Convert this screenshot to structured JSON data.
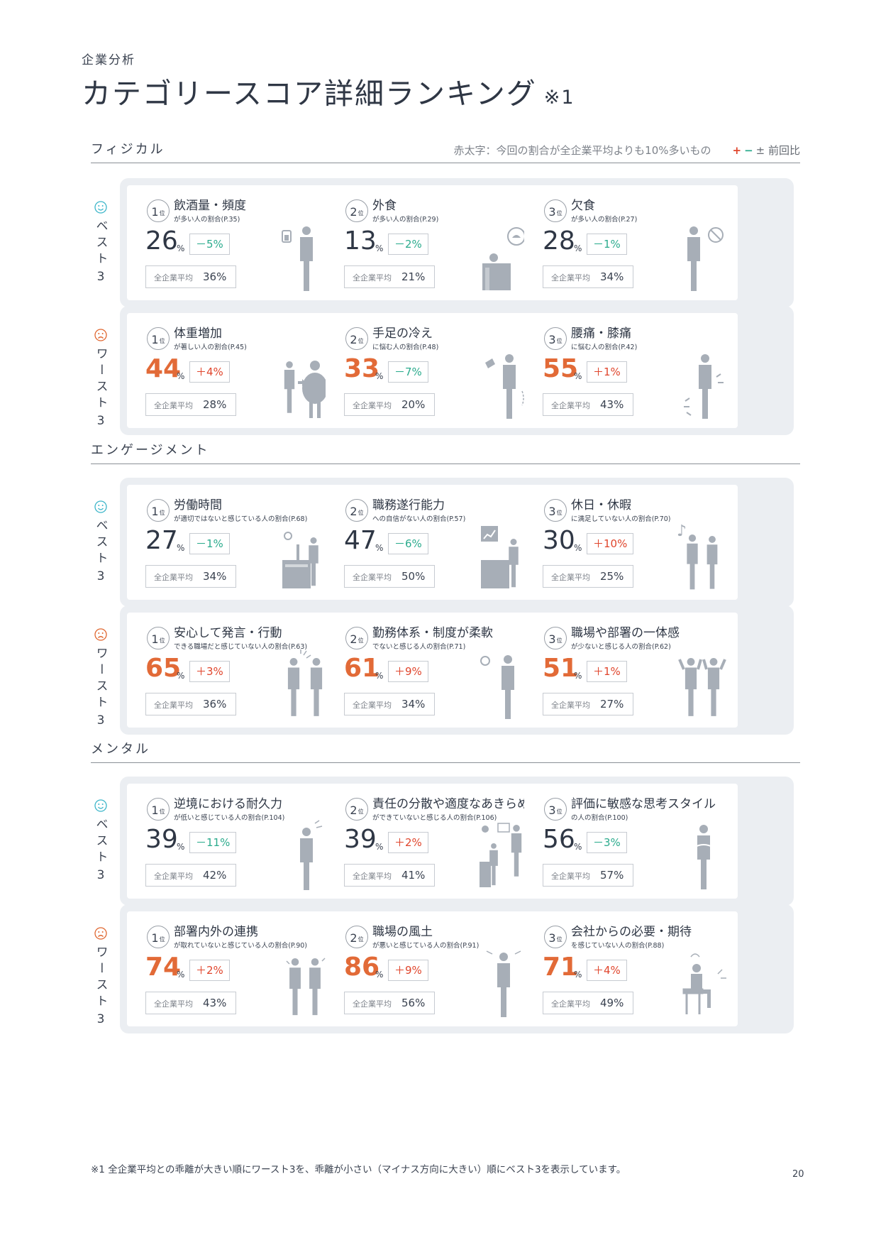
{
  "kicker": "企業分析",
  "title": "カテゴリースコア詳細ランキング",
  "title_note": "※1",
  "legend": {
    "text": "赤太字：今回の割合が全企業平均よりも10%多いもの",
    "plus": "+",
    "minus": "−",
    "label": "± 前回比"
  },
  "rank_unit": "位",
  "avg_label": "全企業平均",
  "best_label": {
    "text": "ベスト",
    "num": "3"
  },
  "worst_label": {
    "text": "ワースト",
    "num": "3"
  },
  "colors": {
    "bad_value": "#e26a37",
    "plus": "#e0452c",
    "minus": "#2bab8d",
    "best_icon": "#3bb5c9",
    "worst_icon": "#e0662f"
  },
  "sections": [
    {
      "title": "フィジカル",
      "best": [
        {
          "rank": "1",
          "name": "飲酒量・頻度",
          "sub": "が多い人の割合(P.35)",
          "value": "26",
          "delta": "－5%",
          "sign": "minus",
          "avg": "36%",
          "icon": "drinking-person-icon"
        },
        {
          "rank": "2",
          "name": "外食",
          "sub": "が多い人の割合(P.29)",
          "value": "13",
          "delta": "－2%",
          "sign": "minus",
          "avg": "21%",
          "icon": "dining-out-icon"
        },
        {
          "rank": "3",
          "name": "欠食",
          "sub": "が多い人の割合(P.27)",
          "value": "28",
          "delta": "－1%",
          "sign": "minus",
          "avg": "34%",
          "icon": "skipped-meal-icon"
        }
      ],
      "worst": [
        {
          "rank": "1",
          "name": "体重増加",
          "sub": "が著しい人の割合(P.45)",
          "value": "44",
          "delta": "＋4%",
          "sign": "plus",
          "avg": "28%",
          "bad": true,
          "icon": "weight-gain-icon"
        },
        {
          "rank": "2",
          "name": "手足の冷え",
          "sub": "に悩む人の割合(P.48)",
          "value": "33",
          "delta": "－7%",
          "sign": "minus",
          "avg": "20%",
          "bad": true,
          "icon": "cold-limbs-icon"
        },
        {
          "rank": "3",
          "name": "腰痛・膝痛",
          "sub": "に悩む人の割合(P.42)",
          "value": "55",
          "delta": "＋1%",
          "sign": "plus",
          "avg": "43%",
          "bad": true,
          "icon": "back-pain-icon"
        }
      ]
    },
    {
      "title": "エンゲージメント",
      "best": [
        {
          "rank": "1",
          "name": "労働時間",
          "sub": "が適切ではないと感じている人の割合(P.68)",
          "value": "27",
          "delta": "－1%",
          "sign": "minus",
          "avg": "34%",
          "icon": "desk-worker-icon"
        },
        {
          "rank": "2",
          "name": "職務遂行能力",
          "sub": "への自信がない人の割合(P.57)",
          "value": "47",
          "delta": "－6%",
          "sign": "minus",
          "avg": "50%",
          "icon": "desk-chart-icon"
        },
        {
          "rank": "3",
          "name": "休日・休暇",
          "sub": "に満足していない人の割合(P.70)",
          "value": "30",
          "delta": "＋10%",
          "sign": "plus",
          "avg": "25%",
          "icon": "couple-music-icon"
        }
      ],
      "worst": [
        {
          "rank": "1",
          "name": "安心して発言・行動",
          "sub": "できる職場だと感じていない人の割合(P.63)",
          "value": "65",
          "delta": "＋3%",
          "sign": "plus",
          "avg": "36%",
          "bad": true,
          "icon": "high-five-icon"
        },
        {
          "rank": "2",
          "name": "勤務体系・制度が柔軟",
          "sub": "でないと感じる人の割合(P.71)",
          "value": "61",
          "delta": "＋9%",
          "sign": "plus",
          "avg": "34%",
          "bad": true,
          "icon": "clock-person-icon"
        },
        {
          "rank": "3",
          "name": "職場や部署の一体感",
          "sub": "が少ないと感じる人の割合(P.62)",
          "value": "51",
          "delta": "＋1%",
          "sign": "plus",
          "avg": "27%",
          "bad": true,
          "icon": "cheering-people-icon"
        }
      ]
    },
    {
      "title": "メンタル",
      "best": [
        {
          "rank": "1",
          "name": "逆境における耐久力",
          "sub": "が低いと感じている人の割合(P.104)",
          "value": "39",
          "delta": "－11%",
          "sign": "minus",
          "avg": "42%",
          "icon": "stressed-person-icon"
        },
        {
          "rank": "2",
          "name": "責任の分散や適度なあきらめ",
          "sub": "ができていないと感じる人の割合(P.106)",
          "value": "39",
          "delta": "＋2%",
          "sign": "plus",
          "avg": "41%",
          "icon": "office-workers-icon"
        },
        {
          "rank": "3",
          "name": "評価に敏感な思考スタイル",
          "sub": "の人の割合(P.100)",
          "value": "56",
          "delta": "－3%",
          "sign": "minus",
          "avg": "57%",
          "icon": "anxious-person-icon"
        }
      ],
      "worst": [
        {
          "rank": "1",
          "name": "部署内外の連携",
          "sub": "が取れていないと感じている人の割合(P.90)",
          "value": "74",
          "delta": "＋2%",
          "sign": "plus",
          "avg": "43%",
          "bad": true,
          "icon": "two-businessmen-icon"
        },
        {
          "rank": "2",
          "name": "職場の風土",
          "sub": "が悪いと感じている人の割合(P.91)",
          "value": "86",
          "delta": "＋9%",
          "sign": "plus",
          "avg": "56%",
          "bad": true,
          "icon": "frustrated-person-icon"
        },
        {
          "rank": "3",
          "name": "会社からの必要・期待",
          "sub": "を感じていない人の割合(P.88)",
          "value": "71",
          "delta": "＋4%",
          "sign": "plus",
          "avg": "49%",
          "bad": true,
          "icon": "seated-thinker-icon"
        }
      ]
    }
  ],
  "footnote": "※1 全企業平均との乖離が大きい順にワースト3を、乖離が小さい（マイナス方向に大きい）順にベスト3を表示しています。",
  "page_number": "20"
}
